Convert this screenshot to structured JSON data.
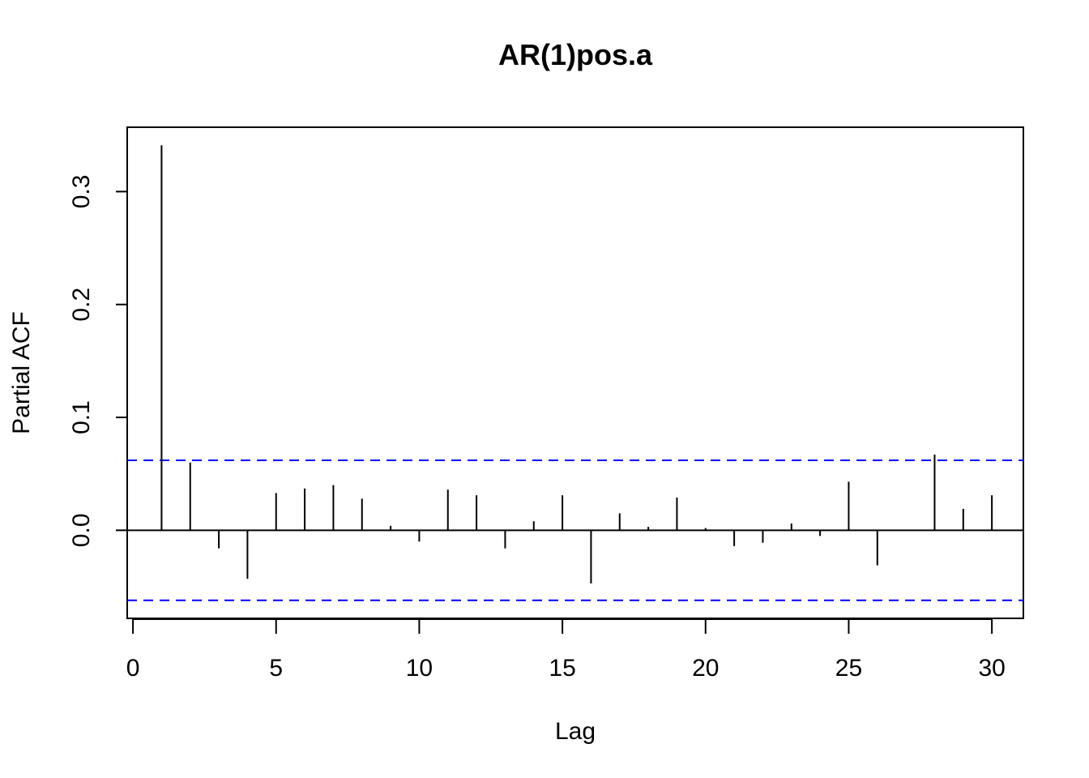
{
  "chart_data": {
    "type": "bar",
    "title": "AR(1)pos.a",
    "xlabel": "Lag",
    "ylabel": "Partial ACF",
    "xlim": [
      -0.2,
      31.1
    ],
    "ylim": [
      -0.078,
      0.357
    ],
    "x_ticks": [
      0,
      5,
      10,
      15,
      20,
      25,
      30
    ],
    "y_ticks": [
      0.0,
      0.1,
      0.2,
      0.3
    ],
    "x_tick_labels": [
      "0",
      "5",
      "10",
      "15",
      "20",
      "25",
      "30"
    ],
    "y_tick_labels": [
      "0.0",
      "0.1",
      "0.2",
      "0.3"
    ],
    "lags": [
      1,
      2,
      3,
      4,
      5,
      6,
      7,
      8,
      9,
      10,
      11,
      12,
      13,
      14,
      15,
      16,
      17,
      18,
      19,
      20,
      21,
      22,
      23,
      24,
      25,
      26,
      27,
      28,
      29,
      30
    ],
    "values": [
      0.341,
      0.06,
      -0.016,
      -0.043,
      0.033,
      0.037,
      0.04,
      0.028,
      0.004,
      -0.01,
      0.036,
      0.031,
      -0.016,
      0.008,
      0.031,
      -0.047,
      0.015,
      0.003,
      0.029,
      0.002,
      -0.014,
      -0.011,
      0.006,
      -0.005,
      0.043,
      -0.031,
      0.0,
      0.067,
      0.019,
      0.031
    ],
    "confidence_bounds": [
      0.062,
      -0.062
    ],
    "bound_color": "#0000ff",
    "grid": false
  }
}
